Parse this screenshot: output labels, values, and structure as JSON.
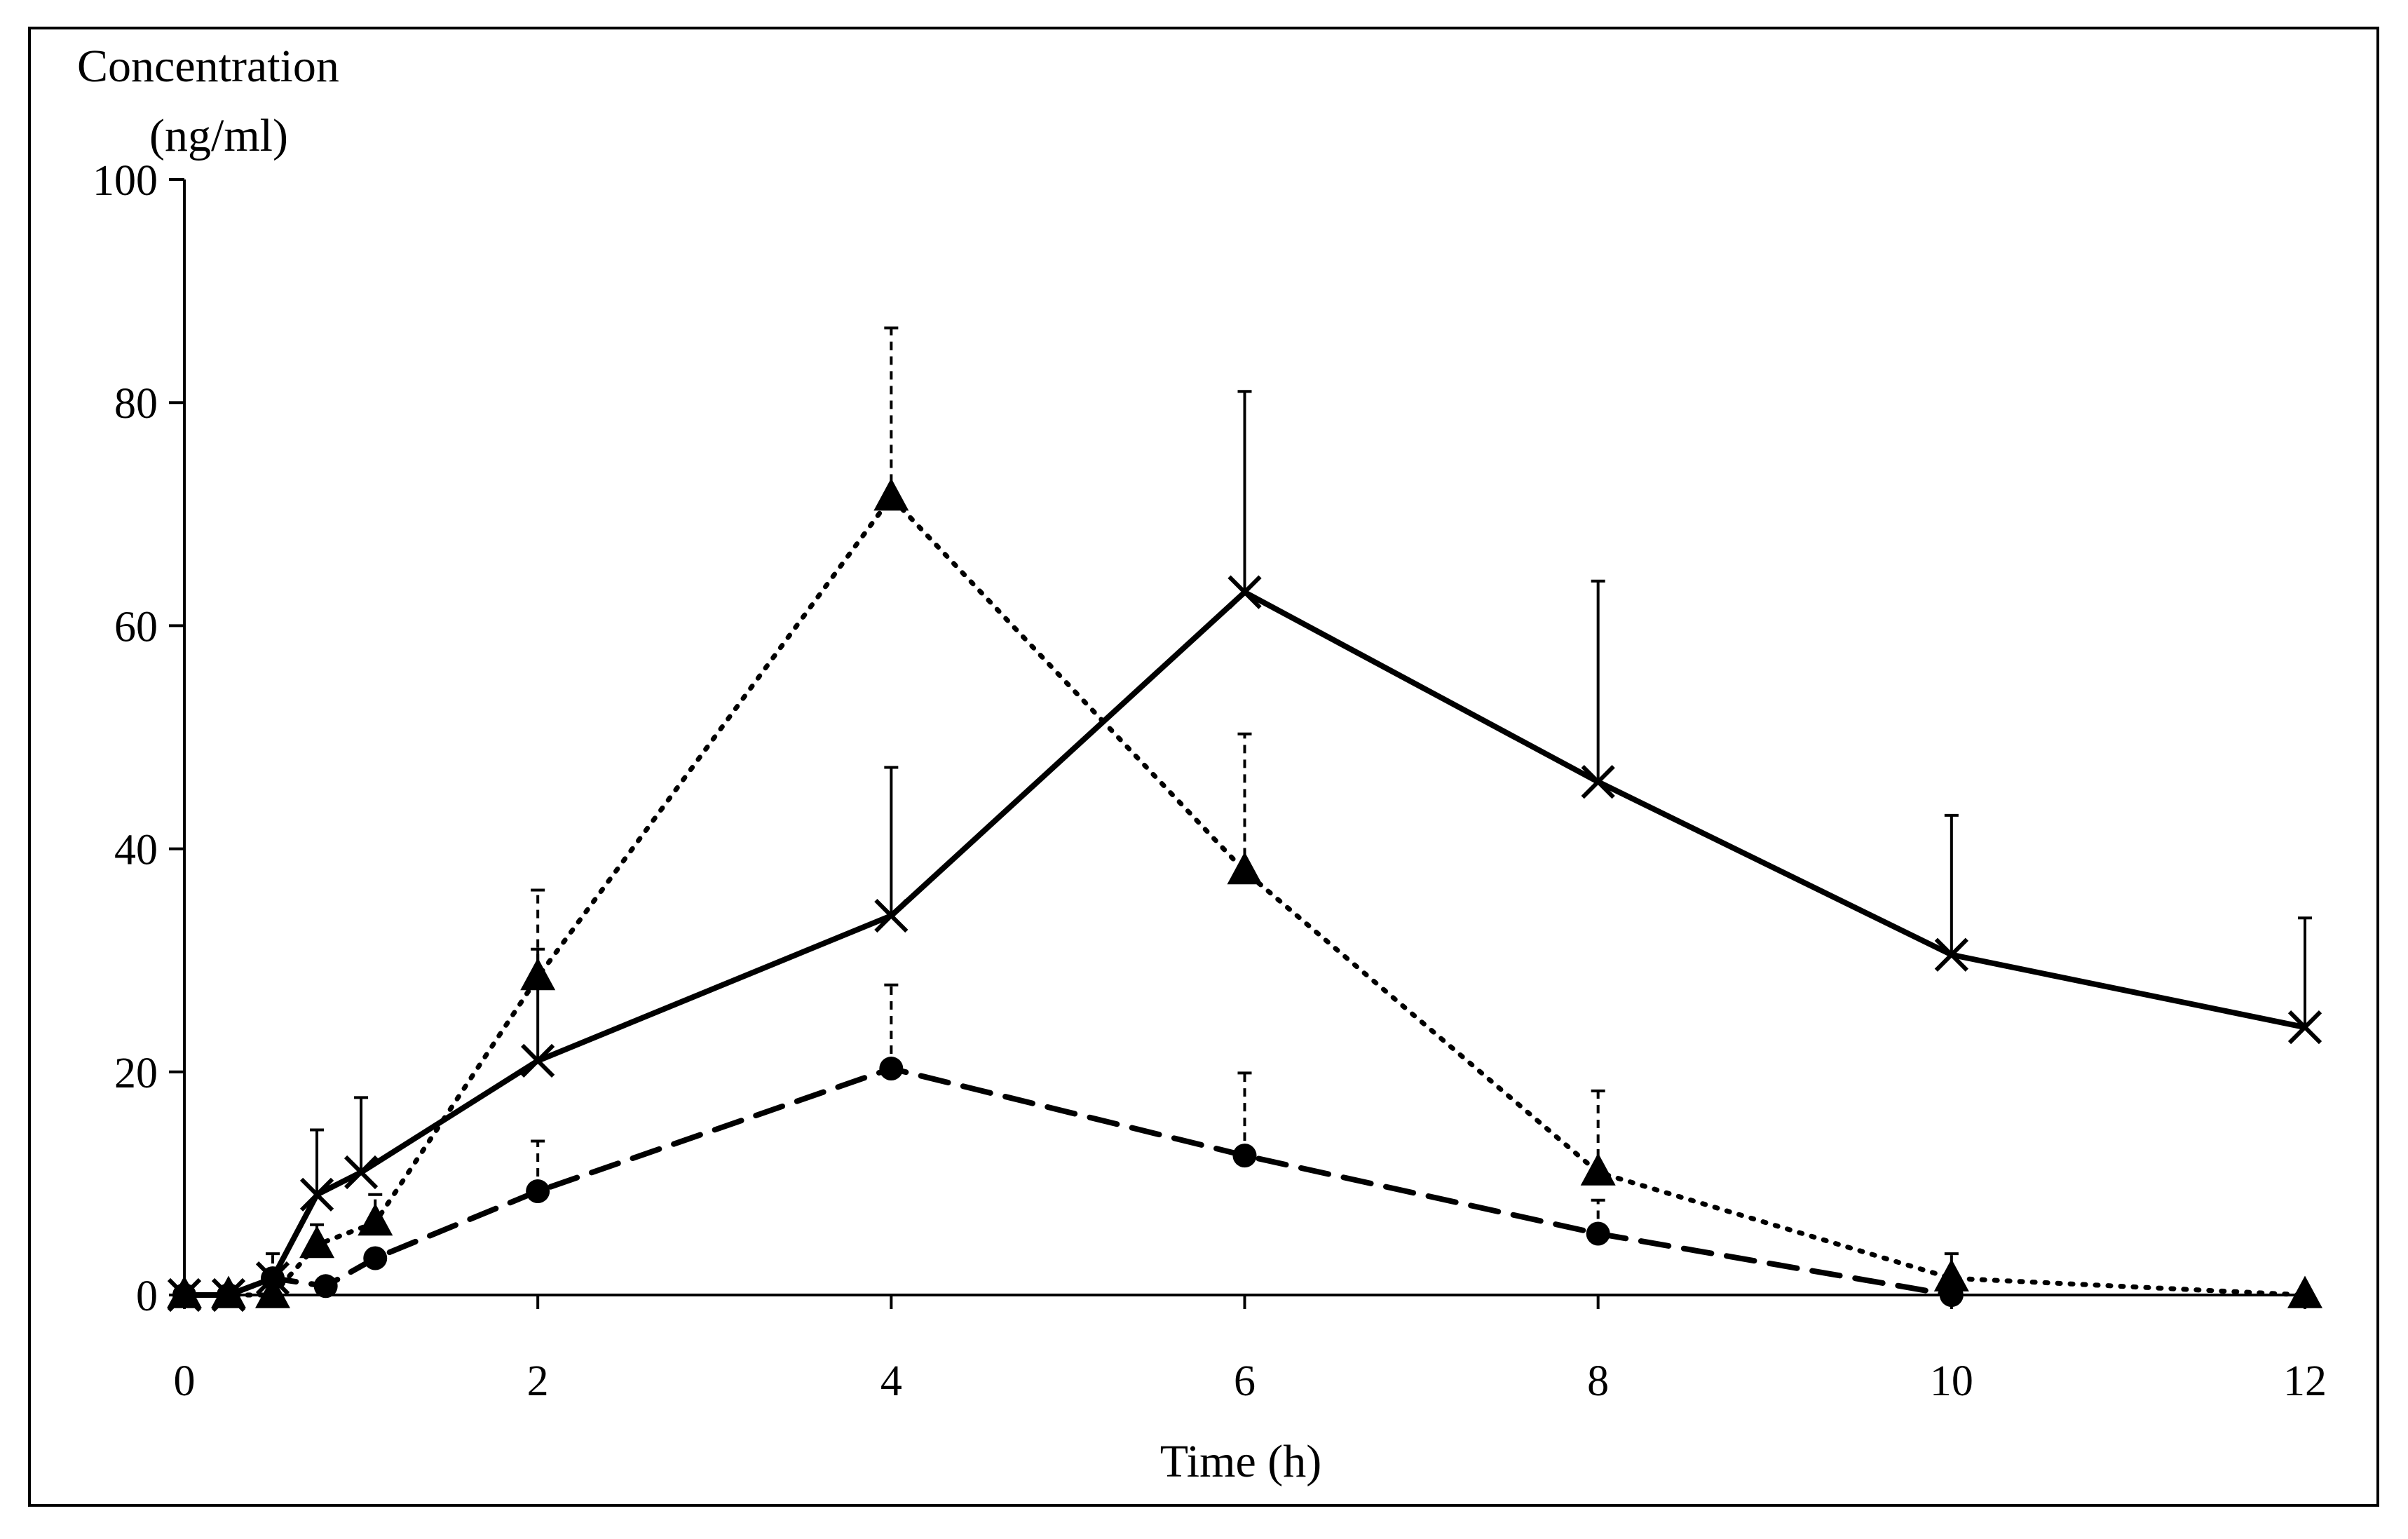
{
  "chart_data": {
    "type": "line",
    "title": "",
    "ylabel_line1": "Concentration",
    "ylabel_line2": "(ng/ml)",
    "xlabel": "Time (h)",
    "xlim": [
      0,
      12
    ],
    "ylim": [
      0,
      100
    ],
    "xticks": [
      0,
      2,
      4,
      6,
      8,
      10,
      12
    ],
    "yticks": [
      0,
      20,
      40,
      60,
      80,
      100
    ],
    "grid": false,
    "legend": "none",
    "colors": {
      "line": "#000000",
      "background": "#ffffff"
    },
    "series": [
      {
        "name": "solid-x",
        "style": "solid",
        "marker": "x",
        "x": [
          0,
          0.25,
          0.5,
          0.75,
          1,
          2,
          4,
          6,
          8,
          10,
          12
        ],
        "values": [
          0,
          0,
          1.5,
          9,
          11,
          21,
          34,
          63,
          46,
          30.5,
          24
        ],
        "errors": [
          0,
          0,
          0,
          5.8,
          6.7,
          10,
          13.3,
          18,
          18,
          12.5,
          9.8
        ]
      },
      {
        "name": "dotted-triangle",
        "style": "dotted",
        "marker": "triangle",
        "x": [
          0,
          0.25,
          0.5,
          0.75,
          1.08,
          2,
          4,
          6,
          8,
          10,
          12
        ],
        "values": [
          0,
          0,
          0,
          4.5,
          6.5,
          28.5,
          71.5,
          38,
          11,
          1.5,
          0
        ],
        "errors": [
          0,
          0,
          0,
          1.8,
          2.5,
          7.8,
          15.2,
          12.3,
          7.3,
          2.2,
          0
        ]
      },
      {
        "name": "dashed-circle",
        "style": "dashed",
        "marker": "circle",
        "x": [
          0,
          0.25,
          0.5,
          0.8,
          1.08,
          2,
          4,
          6,
          8,
          10
        ],
        "values": [
          0,
          0,
          1.5,
          0.8,
          3.3,
          9.3,
          20.3,
          12.5,
          5.5,
          0
        ],
        "errors": [
          0,
          0,
          2.2,
          0,
          0,
          4.5,
          7.5,
          7.4,
          3,
          0
        ]
      }
    ]
  }
}
